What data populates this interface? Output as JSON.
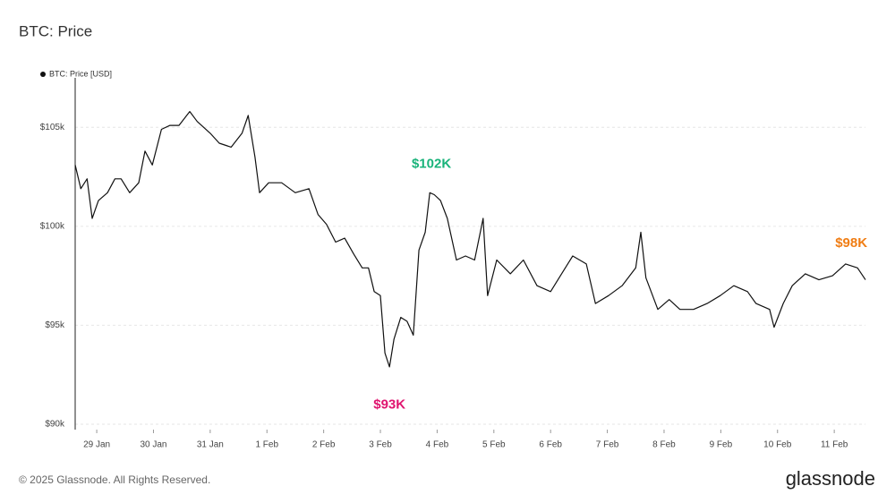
{
  "chart_data": {
    "type": "line",
    "title": "BTC: Price",
    "footer": "© 2025 Glassnode. All Rights Reserved.",
    "brand": "glassnode",
    "xlim": [
      -0.38,
      13.55
    ],
    "xticks": [
      {
        "value": 0,
        "label": "29 Jan"
      },
      {
        "value": 1,
        "label": "30 Jan"
      },
      {
        "value": 2,
        "label": "31 Jan"
      },
      {
        "value": 3,
        "label": "1 Feb"
      },
      {
        "value": 4,
        "label": "2 Feb"
      },
      {
        "value": 5,
        "label": "3 Feb"
      },
      {
        "value": 6,
        "label": "4 Feb"
      },
      {
        "value": 7,
        "label": "5 Feb"
      },
      {
        "value": 8,
        "label": "6 Feb"
      },
      {
        "value": 9,
        "label": "7 Feb"
      },
      {
        "value": 10,
        "label": "8 Feb"
      },
      {
        "value": 11,
        "label": "9 Feb"
      },
      {
        "value": 12,
        "label": "10 Feb"
      },
      {
        "value": 13,
        "label": "11 Feb"
      }
    ],
    "ylim": [
      90000,
      107500
    ],
    "yticks": [
      {
        "value": 90000,
        "label": "$90k"
      },
      {
        "value": 95000,
        "label": "$95k"
      },
      {
        "value": 100000,
        "label": "$100k"
      },
      {
        "value": 105000,
        "label": "$105k"
      }
    ],
    "grid": true,
    "x": [
      -0.38,
      -0.28,
      -0.17,
      -0.08,
      0.03,
      0.19,
      0.32,
      0.43,
      0.58,
      0.74,
      0.85,
      0.98,
      1.14,
      1.29,
      1.45,
      1.64,
      1.77,
      2.0,
      2.16,
      2.37,
      2.56,
      2.67,
      2.79,
      2.87,
      3.03,
      3.26,
      3.5,
      3.74,
      3.9,
      4.05,
      4.21,
      4.37,
      4.53,
      4.68,
      4.79,
      4.89,
      5.0,
      5.08,
      5.16,
      5.24,
      5.36,
      5.47,
      5.58,
      5.68,
      5.79,
      5.87,
      5.95,
      6.06,
      6.18,
      6.34,
      6.5,
      6.66,
      6.81,
      6.89,
      7.05,
      7.29,
      7.52,
      7.76,
      8.0,
      8.15,
      8.39,
      8.63,
      8.79,
      9.02,
      9.26,
      9.5,
      9.59,
      9.68,
      9.89,
      10.09,
      10.28,
      10.52,
      10.76,
      10.99,
      11.23,
      11.47,
      11.62,
      11.86,
      11.94,
      12.1,
      12.26,
      12.49,
      12.73,
      12.97,
      13.2,
      13.41,
      13.55
    ],
    "series": [
      {
        "name": "BTC: Price [USD]",
        "color": "#111111",
        "values": [
          103100,
          101900,
          102400,
          100400,
          101300,
          101700,
          102400,
          102400,
          101700,
          102200,
          103800,
          103100,
          104900,
          105100,
          105100,
          105800,
          105300,
          104700,
          104200,
          104000,
          104700,
          105600,
          103500,
          101700,
          102200,
          102200,
          101700,
          101900,
          100600,
          100100,
          99200,
          99400,
          98600,
          97900,
          97900,
          96700,
          96500,
          93600,
          92900,
          94300,
          95400,
          95200,
          94500,
          98800,
          99700,
          101700,
          101600,
          101300,
          100400,
          98300,
          98500,
          98300,
          100400,
          96500,
          98300,
          97600,
          98300,
          97000,
          96700,
          97400,
          98500,
          98100,
          96100,
          96500,
          97000,
          97900,
          99700,
          97400,
          95800,
          96300,
          95800,
          95800,
          96100,
          96500,
          97000,
          96700,
          96100,
          95800,
          94900,
          96100,
          97000,
          97600,
          97300,
          97500,
          98100,
          97900,
          97300
        ]
      }
    ],
    "annotations": [
      {
        "text": "$102K",
        "x": 5.9,
        "y": 102000,
        "position": "above",
        "color": "#19b37a"
      },
      {
        "text": "$93K",
        "x": 5.16,
        "y": 93000,
        "position": "below",
        "color": "#e0146f"
      },
      {
        "text": "$98K",
        "x": 13.3,
        "y": 98000,
        "position": "above",
        "color": "#f07d14"
      }
    ]
  }
}
